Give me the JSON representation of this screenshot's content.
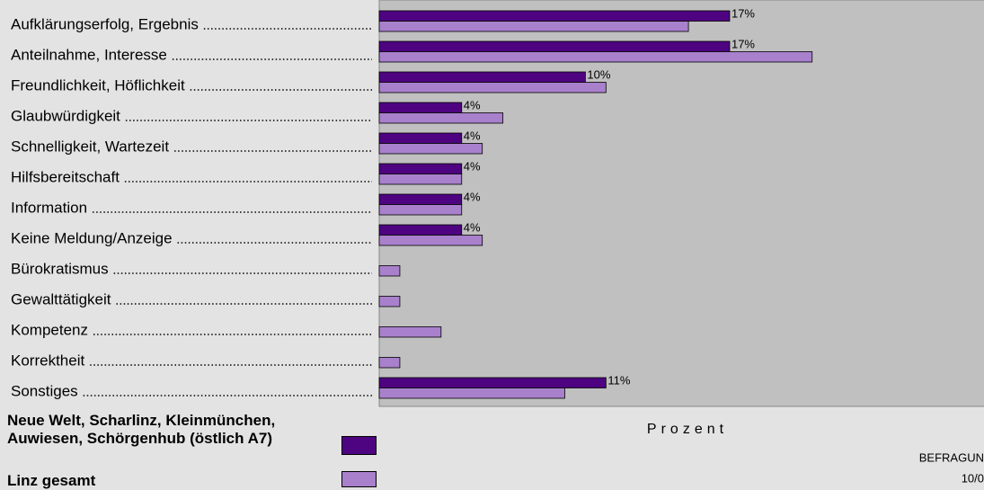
{
  "chart_data": {
    "type": "bar",
    "orientation": "horizontal",
    "x_label": "Prozent",
    "categories": [
      "Aufklärungserfolg, Ergebnis",
      "Anteilnahme, Interesse",
      "Freundlichkeit, Höflichkeit",
      "Glaubwürdigkeit",
      "Schnelligkeit, Wartezeit",
      "Hilfsbereitschaft",
      "Information",
      "Keine Meldung/Anzeige",
      "Bürokratismus",
      "Gewalttätigkeit",
      "Kompetenz",
      "Korrektheit",
      "Sonstiges"
    ],
    "series": [
      {
        "name": "Neue Welt, Scharlinz, Kleinmünchen, Auwiesen, Schörgenhub (östlich A7)",
        "color": "#4e0480",
        "values": [
          17,
          17,
          10,
          4,
          4,
          4,
          4,
          4,
          0,
          0,
          0,
          0,
          11
        ],
        "value_labels": [
          "17%",
          "17%",
          "10%",
          "4%",
          "4%",
          "4%",
          "4%",
          "4%",
          null,
          null,
          null,
          null,
          "11%"
        ]
      },
      {
        "name": "Linz gesamt",
        "color": "#a880cc",
        "values": [
          15,
          21,
          11,
          6,
          5,
          4,
          4,
          5,
          1,
          1,
          3,
          1,
          9
        ]
      }
    ],
    "xlim": [
      0,
      30
    ],
    "notes": [
      "BEFRAGUN",
      "10/0"
    ]
  }
}
